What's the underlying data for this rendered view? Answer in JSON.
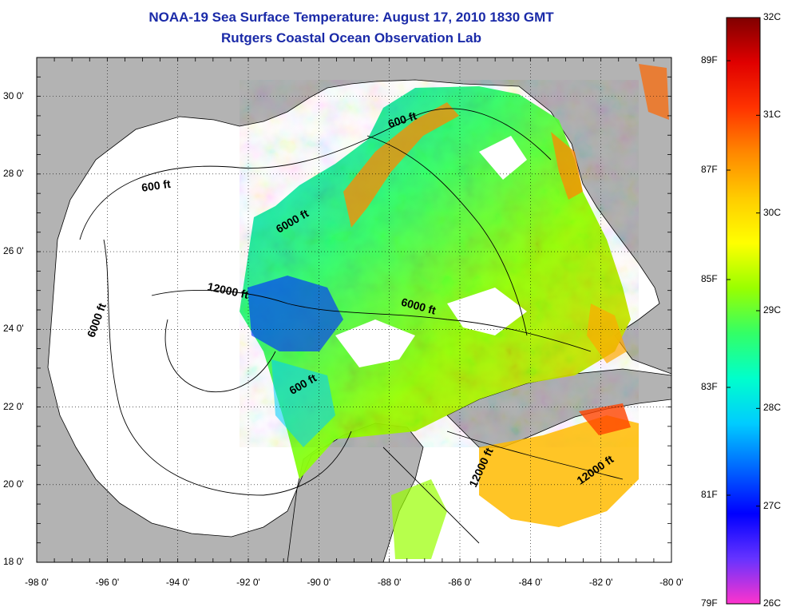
{
  "title": "NOAA-19 Sea Surface Temperature:  August 17, 2010 1830 GMT",
  "subtitle": "Rutgers Coastal Ocean Observation Lab",
  "map": {
    "lat_ticks": [
      "30 0'",
      "28 0'",
      "26 0'",
      "24 0'",
      "22 0'",
      "20 0'",
      "18 0'"
    ],
    "lon_ticks": [
      "-98 0'",
      "-96 0'",
      "-94 0'",
      "-92 0'",
      "-90 0'",
      "-88 0'",
      "-86 0'",
      "-84 0'",
      "-82 0'",
      "-80 0'"
    ],
    "grid": true,
    "land_color": "#b3b3b3",
    "no_data_color": "#ffffff",
    "contour_labels": [
      {
        "text": "600 ft",
        "lon": -94.6,
        "lat": 27.6,
        "angle": -8
      },
      {
        "text": "600 ft",
        "lon": -87.6,
        "lat": 29.3,
        "angle": -18
      },
      {
        "text": "600 ft",
        "lon": -90.4,
        "lat": 22.5,
        "angle": -30
      },
      {
        "text": "6000 ft",
        "lon": -90.7,
        "lat": 26.7,
        "angle": -30
      },
      {
        "text": "6000 ft",
        "lon": -96.2,
        "lat": 24.2,
        "angle": -70
      },
      {
        "text": "6000 ft",
        "lon": -87.2,
        "lat": 24.5,
        "angle": 15
      },
      {
        "text": "12000 ft",
        "lon": -92.6,
        "lat": 24.9,
        "angle": 12
      },
      {
        "text": "12000 ft",
        "lon": -85.3,
        "lat": 20.4,
        "angle": -65
      },
      {
        "text": "12000 ft",
        "lon": -82.1,
        "lat": 20.3,
        "angle": -35
      }
    ]
  },
  "colorbar": {
    "celsius": [
      "32C",
      "31C",
      "30C",
      "29C",
      "28C",
      "27C",
      "26C"
    ],
    "fahrenheit": [
      "89F",
      "87F",
      "85F",
      "83F",
      "81F",
      "79F"
    ],
    "colors": [
      "#ff33cc",
      "#6633ff",
      "#0000ff",
      "#0066ff",
      "#00ccff",
      "#00ffcc",
      "#33ff66",
      "#99ff00",
      "#ffff00",
      "#ffcc00",
      "#ff8800",
      "#ff3300",
      "#e00000",
      "#800000"
    ]
  }
}
